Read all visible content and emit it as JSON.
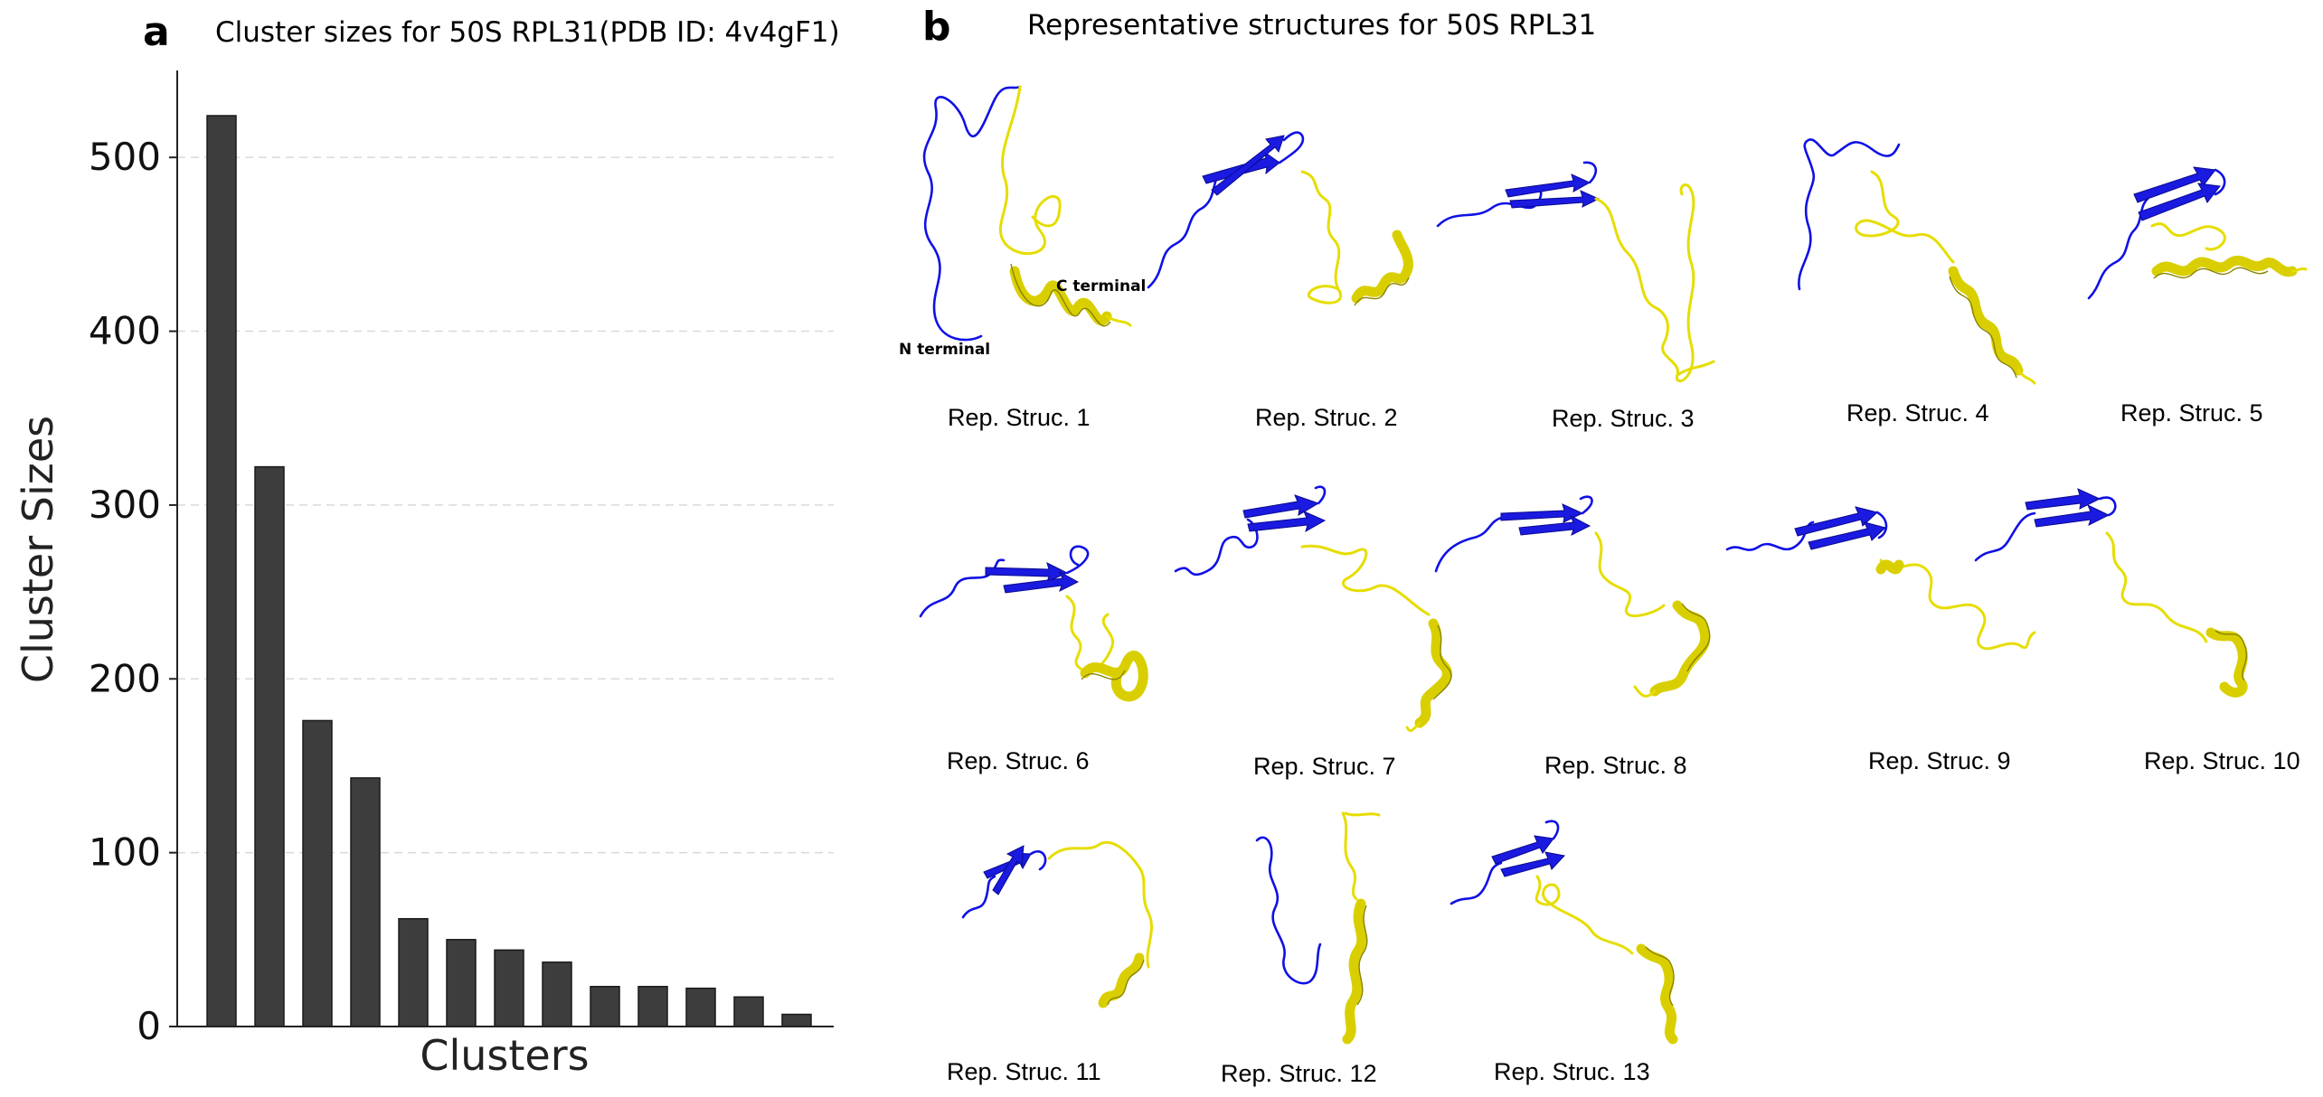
{
  "panels": {
    "a": {
      "letter": "a",
      "title": "Cluster sizes for 50S RPL31(PDB ID: 4v4gF1)"
    },
    "b": {
      "letter": "b",
      "title": "Representative structures for 50S RPL31"
    }
  },
  "chart_data": {
    "type": "bar",
    "title": "Cluster sizes for 50S RPL31(PDB ID: 4v4gF1)",
    "xlabel": "Clusters",
    "ylabel": "Cluster Sizes",
    "ylim": [
      0,
      550
    ],
    "yticks": [
      0,
      100,
      200,
      300,
      400,
      500
    ],
    "grid": "horizontal dashed",
    "categories": [
      "1",
      "2",
      "3",
      "4",
      "5",
      "6",
      "7",
      "8",
      "9",
      "10",
      "11",
      "12",
      "13"
    ],
    "category_labels_shown": false,
    "values": [
      524,
      322,
      176,
      143,
      62,
      50,
      44,
      37,
      23,
      23,
      22,
      17,
      7
    ]
  },
  "structures": {
    "labels": [
      "Rep. Struc. 1",
      "Rep. Struc. 2",
      "Rep. Struc. 3",
      "Rep. Struc. 4",
      "Rep. Struc. 5",
      "Rep. Struc. 6",
      "Rep. Struc. 7",
      "Rep. Struc. 8",
      "Rep. Struc. 9",
      "Rep. Struc. 10",
      "Rep. Struc. 11",
      "Rep. Struc. 12",
      "Rep. Struc. 13"
    ],
    "annotations": {
      "n_terminal": "N terminal",
      "c_terminal": "C terminal"
    },
    "colors": {
      "n_region": "#1010e6",
      "c_region": "#e6dd00"
    }
  }
}
